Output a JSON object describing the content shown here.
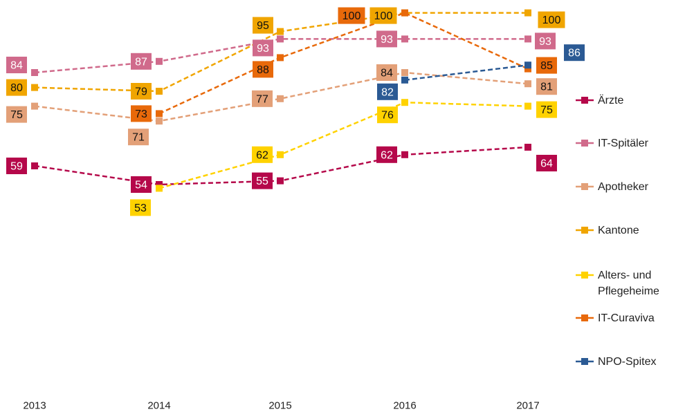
{
  "chart_data": {
    "type": "line",
    "categories": [
      "2013",
      "2014",
      "2015",
      "2016",
      "2017"
    ],
    "ylim": [
      50,
      100
    ],
    "series": [
      {
        "name": "Ärzte",
        "color": "#b5084a",
        "values": [
          59,
          54,
          55,
          62,
          64
        ]
      },
      {
        "name": "IT-Spitäler",
        "color": "#d06a8b",
        "values": [
          84,
          87,
          93,
          93,
          93
        ]
      },
      {
        "name": "Apotheker",
        "color": "#e3a078",
        "values": [
          75,
          71,
          77,
          84,
          81
        ]
      },
      {
        "name": "Kantone",
        "color": "#f0a500",
        "values": [
          80,
          79,
          95,
          100,
          100
        ]
      },
      {
        "name": "Alters- und Pflegeheime",
        "color": "#ffd200",
        "values": [
          null,
          53,
          62,
          76,
          75
        ]
      },
      {
        "name": "IT-Curaviva",
        "color": "#e8690a",
        "values": [
          null,
          73,
          88,
          100,
          85
        ]
      },
      {
        "name": "NPO-Spitex",
        "color": "#2b5a94",
        "values": [
          null,
          null,
          null,
          82,
          86
        ]
      }
    ]
  }
}
